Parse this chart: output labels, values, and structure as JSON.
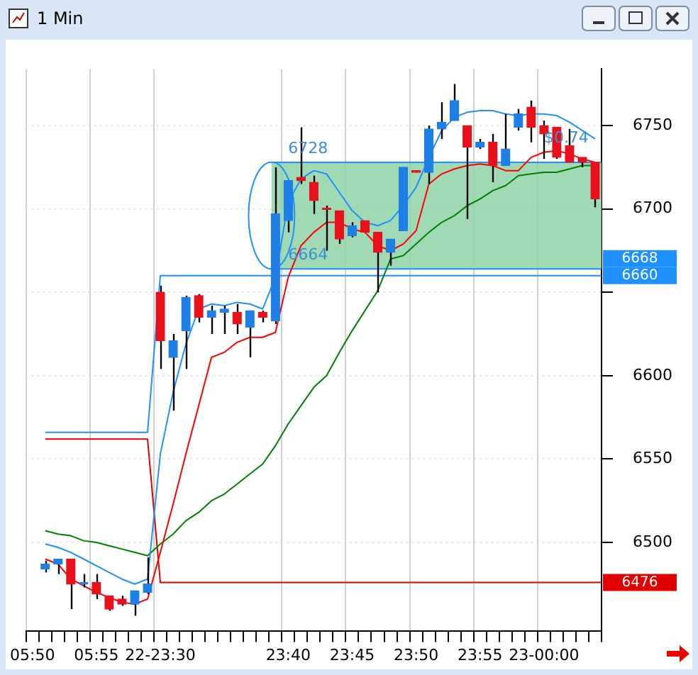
{
  "chart_data": {
    "type": "candlestick",
    "title": "1 Min",
    "categories": [
      "05:50",
      null,
      null,
      null,
      null,
      "05:55",
      null,
      null,
      null,
      null,
      "22-23:30",
      null,
      null,
      null,
      null,
      null,
      null,
      null,
      null,
      null,
      "23:40",
      null,
      null,
      null,
      null,
      "23:45",
      null,
      null,
      null,
      null,
      "23:50",
      null,
      null,
      null,
      null,
      "23:55",
      null,
      null,
      null,
      null,
      "23-00:00",
      null,
      null,
      null,
      null
    ],
    "ohlc": [
      null,
      [
        6484,
        6489,
        6482,
        6487
      ],
      [
        6487,
        6490,
        6481,
        6490
      ],
      [
        6490,
        6490,
        6460,
        6475
      ],
      [
        6475,
        6481,
        6473,
        6476
      ],
      [
        6476,
        6481,
        6466,
        6469
      ],
      [
        6468,
        6468,
        6459,
        6460
      ],
      [
        6466,
        6468,
        6462,
        6463
      ],
      [
        6463,
        6471,
        6456,
        6471
      ],
      [
        6470,
        6491,
        6469,
        6475
      ],
      [
        6650,
        6654,
        6604,
        6621
      ],
      [
        6611,
        6625,
        6579,
        6621
      ],
      [
        6627,
        6648,
        6604,
        6647
      ],
      [
        6648,
        6649,
        6632,
        6635
      ],
      [
        6635,
        6642,
        6625,
        6639
      ],
      [
        6638,
        6642,
        6625,
        6640
      ],
      [
        6638,
        6643,
        6625,
        6631
      ],
      [
        6629,
        6639,
        6611,
        6639
      ],
      [
        6638,
        6639,
        6632,
        6635
      ],
      [
        6633,
        6725,
        6631,
        6697
      ],
      [
        6693,
        6717,
        6686,
        6717
      ],
      [
        6719,
        6749,
        6715,
        6717
      ],
      [
        6716,
        6720,
        6697,
        6705
      ],
      [
        6700,
        6702,
        6675,
        6700
      ],
      [
        6699,
        6699,
        6679,
        6682
      ],
      [
        6684,
        6692,
        6683,
        6690
      ],
      [
        6693,
        6693,
        6686,
        6686
      ],
      [
        6686,
        6686,
        6650,
        6674
      ],
      [
        6674,
        6682,
        6666,
        6682
      ],
      [
        6687,
        6725,
        6687,
        6725
      ],
      [
        6723,
        6723,
        6722,
        6722
      ],
      [
        6722,
        6750,
        6715,
        6748
      ],
      [
        6748,
        6764,
        6742,
        6752
      ],
      [
        6753,
        6775,
        6753,
        6765
      ],
      [
        6750,
        6750,
        6694,
        6737
      ],
      [
        6737,
        6742,
        6736,
        6740
      ],
      [
        6740,
        6745,
        6716,
        6726
      ],
      [
        6726,
        6757,
        6726,
        6736
      ],
      [
        6749,
        6760,
        6747,
        6757
      ],
      [
        6761,
        6765,
        6740,
        6749
      ],
      [
        6750,
        6753,
        6730,
        6745
      ],
      [
        6749,
        6749,
        6730,
        6731
      ],
      [
        6738,
        6748,
        6728,
        6728
      ],
      [
        6731,
        6731,
        6725,
        6728
      ],
      [
        6728,
        6728,
        6701,
        6706
      ]
    ],
    "colors": [
      null,
      "#1e7fe6",
      "#1e7fe6",
      "#e8101a",
      "#1e7fe6",
      "#e8101a",
      "#e8101a",
      "#e8101a",
      "#1e7fe6",
      "#1e7fe6",
      "#e8101a",
      "#1e7fe6",
      "#1e7fe6",
      "#e8101a",
      "#1e7fe6",
      "#1e7fe6",
      "#e8101a",
      "#1e7fe6",
      "#e8101a",
      "#1e7fe6",
      "#1e7fe6",
      "#e8101a",
      "#e8101a",
      "#e8101a",
      "#e8101a",
      "#1e7fe6",
      "#e8101a",
      "#e8101a",
      "#1e7fe6",
      "#1e7fe6",
      "#e8101a",
      "#1e7fe6",
      "#1e7fe6",
      "#1e7fe6",
      "#e8101a",
      "#1e7fe6",
      "#e8101a",
      "#1e7fe6",
      "#1e7fe6",
      "#e8101a",
      "#e8101a",
      "#e8101a",
      "#e8101a",
      "#e8101a",
      "#e8101a"
    ],
    "series": [
      {
        "type": "line",
        "color": "#1e90ff",
        "values": [
          null,
          6499,
          6497,
          6494,
          6490,
          6486,
          6482,
          6478,
          6475,
          6478,
          6553,
          6590,
          6619,
          6640,
          6643,
          6642,
          6644,
          6643,
          6640,
          6659,
          6704,
          6718,
          6723,
          6721,
          6710,
          6699,
          6692,
          6690,
          6693,
          6702,
          6713,
          6731,
          6747,
          6755,
          6758,
          6759,
          6759,
          6757,
          6756,
          6757,
          6757,
          6756,
          6752,
          6747,
          6742
        ]
      },
      {
        "type": "line",
        "color": "#ff0000",
        "values": [
          null,
          6490,
          6487,
          6478,
          6474,
          6470,
          6467,
          6464,
          6463,
          6466,
          6494,
          6523,
          6553,
          6582,
          6611,
          6614,
          6620,
          6623,
          6623,
          6626,
          6659,
          6678,
          6686,
          6692,
          6692,
          6688,
          6686,
          6678,
          6675,
          6679,
          6687,
          6715,
          6721,
          6724,
          6726,
          6727,
          6726,
          6723,
          6723,
          6731,
          6734,
          6735,
          6733,
          6730,
          6728
        ]
      },
      {
        "type": "line",
        "color": "#008000",
        "values": [
          null,
          6507,
          6505,
          6504,
          6501,
          6500,
          6498,
          6496,
          6494,
          6492,
          6499,
          6505,
          6513,
          6518,
          6525,
          6529,
          6535,
          6541,
          6547,
          6558,
          6571,
          6582,
          6593,
          6600,
          6614,
          6627,
          6639,
          6651,
          6670,
          6672,
          6679,
          6686,
          6692,
          6696,
          6702,
          6706,
          6711,
          6714,
          6720,
          6721,
          6722,
          6722,
          6724,
          6726,
          6726
        ]
      },
      {
        "type": "line",
        "color": "#1e90ff",
        "values": [
          null,
          6566,
          6566,
          6566,
          6566,
          6566,
          6566,
          6566,
          6566,
          6566,
          6660,
          6660,
          6660,
          6660,
          6660,
          6660,
          6660,
          6660,
          6660,
          6660,
          6660,
          6660,
          6660,
          6660,
          6660,
          6660,
          6660,
          6660,
          6660,
          6660,
          6660,
          6660,
          6660,
          6660,
          6660,
          6660,
          6660,
          6660,
          6660,
          6660,
          6660,
          6660,
          6660,
          6660,
          6660
        ]
      },
      {
        "type": "line",
        "color": "#e00000",
        "values": [
          null,
          6562,
          6562,
          6562,
          6562,
          6562,
          6562,
          6562,
          6562,
          6562,
          6476,
          6476,
          6476,
          6476,
          6476,
          6476,
          6476,
          6476,
          6476,
          6476,
          6476,
          6476,
          6476,
          6476,
          6476,
          6476,
          6476,
          6476,
          6476,
          6476,
          6476,
          6476,
          6476,
          6476,
          6476,
          6476,
          6476,
          6476,
          6476,
          6476,
          6476,
          6476,
          6476,
          6476,
          6476
        ]
      }
    ],
    "bands": [
      {
        "axis": "y",
        "from": 6664,
        "to": 6728,
        "color": "#8fd4a8"
      }
    ],
    "annotations": [
      {
        "text": "6728",
        "x": "23:40",
        "y": 6728
      },
      {
        "text": "6664",
        "x": "23:40",
        "y": 6664
      },
      {
        "text": "$0.74",
        "x": "23-00:00",
        "y": 6734
      },
      "6668",
      "6660",
      "6476"
    ],
    "ylim": [
      6447,
      6784
    ],
    "yticks": [
      6500,
      6550,
      6600,
      {
        "value": 6650,
        "label": null
      },
      6700,
      6750
    ],
    "grid": true,
    "legend": false,
    "marker": "none",
    "line_style": "solid"
  }
}
